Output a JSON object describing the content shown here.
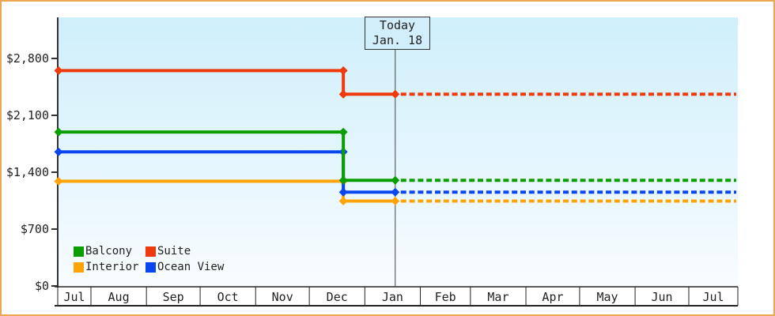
{
  "frame": {
    "border_color": "#eba757",
    "background": "#ffffff"
  },
  "legend": {
    "position": "bottom-left-inside",
    "items": [
      {
        "label": "Balcony",
        "color": "#0a9e00"
      },
      {
        "label": "Suite",
        "color": "#ee3a0c"
      },
      {
        "label": "Interior",
        "color": "#ffa408"
      },
      {
        "label": "Ocean View",
        "color": "#0a46f0"
      }
    ]
  },
  "chart_data": {
    "type": "line",
    "subtype": "step-line price history with dashed projection after today",
    "title": "",
    "x_months": [
      "Jul",
      "Aug",
      "Sep",
      "Oct",
      "Nov",
      "Dec",
      "Jan",
      "Feb",
      "Mar",
      "Apr",
      "May",
      "Jun",
      "Jul"
    ],
    "y_ticks": [
      {
        "value": 0,
        "label": "$0"
      },
      {
        "value": 700,
        "label": "$700"
      },
      {
        "value": 1400,
        "label": "$1,400"
      },
      {
        "value": 2100,
        "label": "$2,100"
      },
      {
        "value": 2800,
        "label": "$2,800"
      }
    ],
    "ylim": [
      0,
      3300
    ],
    "grid": "off",
    "plot_background_gradient": [
      "#cfeffb",
      "#f8fcff"
    ],
    "axis_color": "#333333",
    "today": {
      "label": "Today",
      "date": "Jan. 18"
    },
    "price_drop_date": "Dec 20",
    "series": [
      {
        "name": "Suite",
        "color": "#ee3a0c",
        "value_before_drop": 2650,
        "value_after_drop": 2360
      },
      {
        "name": "Balcony",
        "color": "#0a9e00",
        "value_before_drop": 1895,
        "value_after_drop": 1300
      },
      {
        "name": "Ocean View",
        "color": "#0a46f0",
        "value_before_drop": 1650,
        "value_after_drop": 1155
      },
      {
        "name": "Interior",
        "color": "#ffa408",
        "value_before_drop": 1290,
        "value_after_drop": 1045
      }
    ],
    "line_style": {
      "solid_until": "Jan. 18",
      "dashed_after": "Jan. 18",
      "markers": "diamond"
    }
  }
}
